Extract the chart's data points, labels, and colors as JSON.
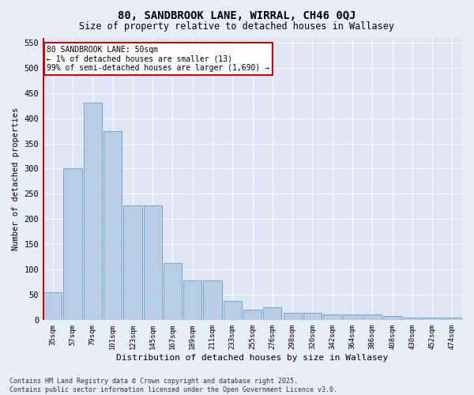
{
  "title1": "80, SANDBROOK LANE, WIRRAL, CH46 0QJ",
  "title2": "Size of property relative to detached houses in Wallasey",
  "xlabel": "Distribution of detached houses by size in Wallasey",
  "ylabel": "Number of detached properties",
  "categories": [
    "35sqm",
    "57sqm",
    "79sqm",
    "101sqm",
    "123sqm",
    "145sqm",
    "167sqm",
    "189sqm",
    "211sqm",
    "233sqm",
    "255sqm",
    "276sqm",
    "298sqm",
    "320sqm",
    "342sqm",
    "364sqm",
    "386sqm",
    "408sqm",
    "430sqm",
    "452sqm",
    "474sqm"
  ],
  "values": [
    55,
    300,
    430,
    375,
    227,
    227,
    113,
    78,
    78,
    38,
    20,
    25,
    14,
    14,
    10,
    10,
    10,
    7,
    5,
    5,
    4
  ],
  "bar_color": "#b8cce4",
  "bar_edge_color": "#6a9cc9",
  "highlight_color": "#cc0000",
  "annotation_title": "80 SANDBROOK LANE: 50sqm",
  "annotation_line1": "← 1% of detached houses are smaller (13)",
  "annotation_line2": "99% of semi-detached houses are larger (1,690) →",
  "annotation_box_color": "#cc0000",
  "ylim": [
    0,
    560
  ],
  "yticks": [
    0,
    50,
    100,
    150,
    200,
    250,
    300,
    350,
    400,
    450,
    500,
    550
  ],
  "bg_color": "#dce6f5",
  "fig_bg_color": "#e8eef8",
  "grid_color": "#ffffff",
  "footer1": "Contains HM Land Registry data © Crown copyright and database right 2025.",
  "footer2": "Contains public sector information licensed under the Open Government Licence v3.0."
}
